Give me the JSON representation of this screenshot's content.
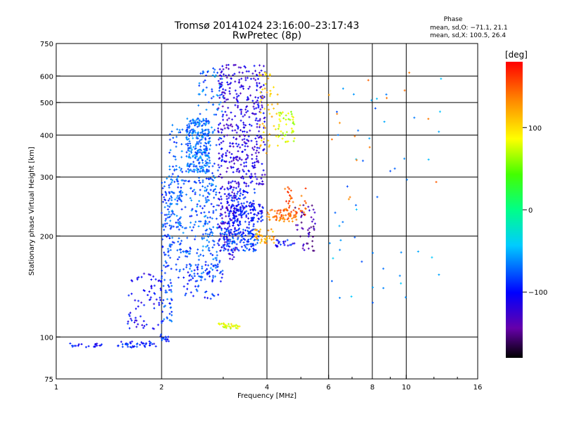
{
  "chart_data": {
    "type": "scatter",
    "title": "Tromsø 20141024 23:16:00–23:17:43",
    "subtitle": "RwPretec (8p)",
    "xlabel": "Frequency [MHz]",
    "ylabel": "Stationary phase Virtual Height [km]",
    "xscale": "log",
    "yscale": "log",
    "xlim": [
      1,
      16
    ],
    "ylim": [
      75,
      750
    ],
    "x_ticks": [
      {
        "value": 1,
        "label": "1"
      },
      {
        "value": 2,
        "label": "2"
      },
      {
        "value": 4,
        "label": "4"
      },
      {
        "value": 6,
        "label": "6"
      },
      {
        "value": 8,
        "label": "8"
      },
      {
        "value": 10,
        "label": "10"
      },
      {
        "value": 16,
        "label": "16"
      }
    ],
    "y_ticks": [
      {
        "value": 75,
        "label": "75"
      },
      {
        "value": 100,
        "label": "100"
      },
      {
        "value": 200,
        "label": "200"
      },
      {
        "value": 300,
        "label": "300"
      },
      {
        "value": 400,
        "label": "400"
      },
      {
        "value": 500,
        "label": "500"
      },
      {
        "value": 600,
        "label": "600"
      },
      {
        "value": 750,
        "label": "750"
      }
    ],
    "grid": true,
    "stats_title": "Phase",
    "stats_o": "mean, sd,O: −71.1, 21.1",
    "stats_x": "mean, sd,X: 100.5, 26.4",
    "colorbar": {
      "label": "[deg]",
      "range": [
        -180,
        180
      ],
      "ticks": [
        {
          "value": 100,
          "label": "100"
        },
        {
          "value": 0,
          "label": "0"
        },
        {
          "value": -100,
          "label": "−100"
        }
      ]
    },
    "clusters": [
      {
        "x": [
          1.05,
          1.35
        ],
        "y": [
          93,
          96
        ],
        "phase": -100,
        "n": 20
      },
      {
        "x": [
          1.5,
          1.95
        ],
        "y": [
          93,
          97
        ],
        "phase": -95,
        "n": 40
      },
      {
        "x": [
          1.95,
          2.1
        ],
        "y": [
          97,
          102
        ],
        "phase": -90,
        "n": 15
      },
      {
        "x": [
          1.6,
          2.0
        ],
        "y": [
          105,
          160
        ],
        "phase": -105,
        "n": 70
      },
      {
        "x": [
          2.0,
          2.15
        ],
        "y": [
          110,
          300
        ],
        "phase": -80,
        "n": 120
      },
      {
        "x": [
          2.1,
          2.3
        ],
        "y": [
          180,
          430
        ],
        "phase": -75,
        "n": 90
      },
      {
        "x": [
          2.35,
          2.75
        ],
        "y": [
          310,
          450
        ],
        "phase": -70,
        "n": 260
      },
      {
        "x": [
          2.2,
          2.9
        ],
        "y": [
          150,
          300
        ],
        "phase": -78,
        "n": 200
      },
      {
        "x": [
          2.5,
          3.0
        ],
        "y": [
          160,
          640
        ],
        "phase": -72,
        "n": 150
      },
      {
        "x": [
          2.9,
          3.3
        ],
        "y": [
          170,
          650
        ],
        "phase": -120,
        "n": 280
      },
      {
        "x": [
          3.3,
          3.95
        ],
        "y": [
          280,
          650
        ],
        "phase": -115,
        "n": 240
      },
      {
        "x": [
          3.1,
          3.7
        ],
        "y": [
          200,
          280
        ],
        "phase": -95,
        "n": 120
      },
      {
        "x": [
          3.0,
          3.8
        ],
        "y": [
          180,
          210
        ],
        "phase": -85,
        "n": 110
      },
      {
        "x": [
          3.2,
          3.9
        ],
        "y": [
          220,
          250
        ],
        "phase": -100,
        "n": 80
      },
      {
        "x": [
          3.7,
          4.2
        ],
        "y": [
          190,
          210
        ],
        "phase": 120,
        "n": 40
      },
      {
        "x": [
          3.8,
          4.3
        ],
        "y": [
          350,
          620
        ],
        "phase": 110,
        "n": 50
      },
      {
        "x": [
          4.0,
          4.9
        ],
        "y": [
          220,
          240
        ],
        "phase": 140,
        "n": 60
      },
      {
        "x": [
          4.3,
          4.8
        ],
        "y": [
          380,
          470
        ],
        "phase": 75,
        "n": 45
      },
      {
        "x": [
          4.5,
          5.2
        ],
        "y": [
          230,
          280
        ],
        "phase": 150,
        "n": 40
      },
      {
        "x": [
          4.8,
          5.5
        ],
        "y": [
          180,
          250
        ],
        "phase": -140,
        "n": 45
      },
      {
        "x": [
          4.2,
          4.8
        ],
        "y": [
          185,
          195
        ],
        "phase": -100,
        "n": 20
      },
      {
        "x": [
          2.9,
          3.35
        ],
        "y": [
          106,
          110
        ],
        "phase": 80,
        "n": 30
      },
      {
        "x": [
          2.3,
          3.0
        ],
        "y": [
          130,
          170
        ],
        "phase": -90,
        "n": 60
      },
      {
        "x": [
          6.0,
          13.0
        ],
        "y": [
          120,
          620
        ],
        "phase": -60,
        "n": 50
      },
      {
        "x": [
          6.0,
          13.0
        ],
        "y": [
          250,
          620
        ],
        "phase": 130,
        "n": 15
      }
    ]
  }
}
